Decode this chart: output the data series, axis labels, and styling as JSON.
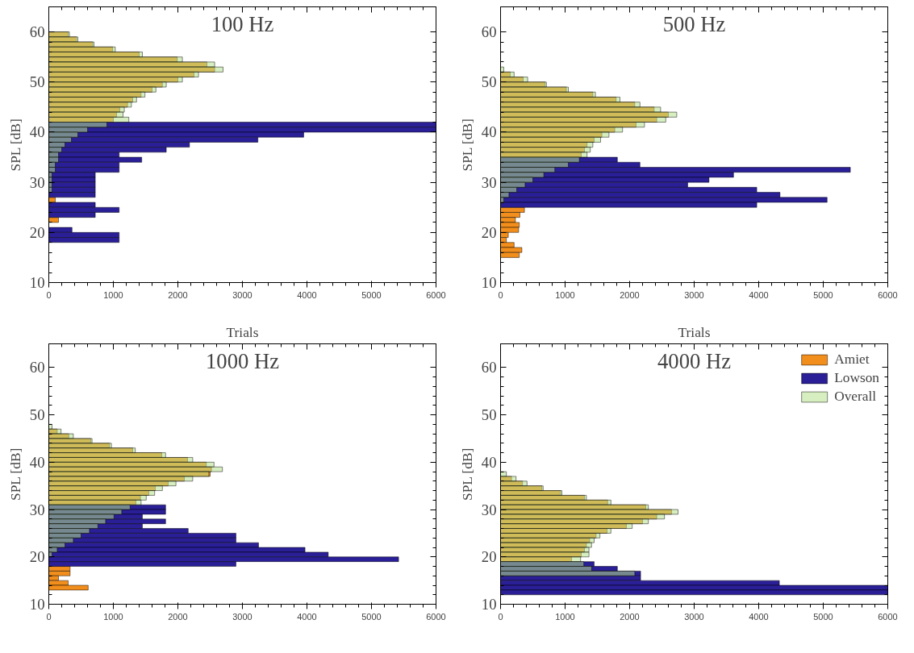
{
  "chart_data": [
    {
      "type": "histogram",
      "orientation": "horizontal",
      "title": "100 Hz",
      "ylabel": "SPL [dB]",
      "xlim": [
        0,
        6000
      ],
      "ylim": [
        10,
        65
      ],
      "xticks": [
        0,
        1000,
        2000,
        3000,
        4000,
        5000,
        6000
      ],
      "yticks": [
        10,
        20,
        30,
        40,
        50,
        60
      ],
      "grid": false,
      "legend": false,
      "bins": [
        60,
        59,
        58,
        57,
        56,
        55,
        54,
        53,
        52,
        51,
        50,
        49,
        48,
        47,
        46,
        45,
        44,
        43,
        42,
        41,
        40,
        39,
        38,
        37,
        36,
        35,
        34,
        33,
        32,
        31,
        30,
        29,
        28,
        27,
        26,
        25,
        24,
        23,
        22,
        21,
        20,
        19,
        18
      ],
      "series": [
        {
          "color": "#f28e1c",
          "values": [
            300,
            430,
            680,
            990,
            1400,
            1990,
            2450,
            2570,
            2250,
            2000,
            1760,
            1600,
            1430,
            1300,
            1220,
            1100,
            1050,
            1000,
            null,
            null,
            null,
            null,
            null,
            null,
            null,
            null,
            null,
            null,
            null,
            null,
            null,
            null,
            null,
            100,
            null,
            null,
            null,
            150,
            null,
            null,
            null,
            null
          ]
        },
        {
          "color": "#2a1f96",
          "values": [
            null,
            null,
            null,
            null,
            null,
            null,
            null,
            null,
            null,
            null,
            null,
            null,
            null,
            null,
            null,
            null,
            null,
            null,
            6000,
            6000,
            3950,
            3240,
            2180,
            1820,
            1090,
            1440,
            1090,
            1090,
            720,
            720,
            720,
            720,
            720,
            null,
            720,
            1090,
            720,
            null,
            null,
            360,
            1090,
            1090
          ]
        },
        {
          "color": "#b5e08c",
          "values": [
            320,
            450,
            700,
            1030,
            1450,
            2070,
            2570,
            2700,
            2320,
            2070,
            1820,
            1660,
            1490,
            1360,
            1280,
            1170,
            1150,
            1240,
            900,
            600,
            450,
            350,
            250,
            200,
            150,
            150,
            100,
            100,
            50,
            50,
            50,
            50,
            null,
            null,
            null,
            null,
            null,
            null,
            null,
            null,
            null,
            null
          ]
        }
      ]
    },
    {
      "type": "histogram",
      "orientation": "horizontal",
      "title": "500 Hz",
      "ylabel": "SPL [dB]",
      "xlim": [
        0,
        6000
      ],
      "ylim": [
        10,
        65
      ],
      "xticks": [
        0,
        1000,
        2000,
        3000,
        4000,
        5000,
        6000
      ],
      "yticks": [
        10,
        20,
        30,
        40,
        50,
        60
      ],
      "grid": false,
      "legend": false,
      "bins": [
        53,
        52,
        51,
        50,
        49,
        48,
        47,
        46,
        45,
        44,
        43,
        42,
        41,
        40,
        39,
        38,
        37,
        36,
        35,
        34,
        33,
        32,
        31,
        30,
        29,
        28,
        27,
        26,
        25,
        24,
        23,
        22,
        21,
        20,
        19,
        18,
        17,
        16,
        15
      ],
      "series": [
        {
          "color": "#f28e1c",
          "values": [
            null,
            150,
            350,
            690,
            1020,
            1430,
            1790,
            2080,
            2380,
            2600,
            2420,
            2100,
            1770,
            1570,
            1450,
            1340,
            1300,
            1250,
            null,
            null,
            null,
            null,
            null,
            null,
            null,
            null,
            null,
            null,
            370,
            300,
            230,
            290,
            280,
            120,
            90,
            210,
            330,
            290
          ]
        },
        {
          "color": "#2a1f96",
          "values": [
            null,
            null,
            null,
            null,
            null,
            null,
            null,
            null,
            null,
            null,
            null,
            null,
            null,
            null,
            null,
            null,
            null,
            null,
            1810,
            2160,
            5420,
            3610,
            3230,
            2900,
            3970,
            4330,
            5060,
            3970,
            null,
            null,
            null,
            null,
            null,
            null,
            null,
            null,
            null,
            null
          ]
        },
        {
          "color": "#b5e08c",
          "values": [
            50,
            210,
            420,
            710,
            1050,
            1470,
            1850,
            2160,
            2480,
            2730,
            2560,
            2230,
            1890,
            1680,
            1550,
            1430,
            1390,
            1340,
            1220,
            1050,
            840,
            670,
            500,
            380,
            250,
            130,
            50,
            null,
            null,
            null,
            null,
            null,
            null,
            null,
            null,
            null,
            null,
            null
          ]
        }
      ]
    },
    {
      "type": "histogram",
      "orientation": "horizontal",
      "title": "1000 Hz",
      "xlabel": "Trials",
      "ylabel": "SPL [dB]",
      "xlim": [
        0,
        6000
      ],
      "ylim": [
        10,
        65
      ],
      "xticks": [
        0,
        1000,
        2000,
        3000,
        4000,
        5000,
        6000
      ],
      "yticks": [
        10,
        20,
        30,
        40,
        50,
        60
      ],
      "grid": false,
      "legend": false,
      "bins": [
        48,
        47,
        46,
        45,
        44,
        43,
        42,
        41,
        40,
        39,
        38,
        37,
        36,
        35,
        34,
        33,
        32,
        31,
        30,
        29,
        28,
        27,
        26,
        25,
        24,
        23,
        22,
        21,
        20,
        19,
        18,
        17,
        16,
        15,
        14,
        13
      ],
      "series": [
        {
          "color": "#f28e1c",
          "values": [
            null,
            130,
            310,
            650,
            940,
            1300,
            1750,
            2150,
            2440,
            2520,
            2500,
            2100,
            1850,
            1650,
            1550,
            1420,
            1350,
            null,
            null,
            null,
            null,
            null,
            null,
            null,
            null,
            null,
            null,
            null,
            null,
            null,
            330,
            330,
            150,
            300,
            610
          ]
        },
        {
          "color": "#2a1f96",
          "values": [
            null,
            null,
            null,
            null,
            null,
            null,
            null,
            null,
            null,
            null,
            null,
            null,
            null,
            null,
            null,
            null,
            null,
            1810,
            1810,
            1450,
            1810,
            1450,
            2160,
            2900,
            2900,
            3250,
            3970,
            4330,
            5420,
            2900,
            null,
            null,
            null,
            null,
            null
          ]
        },
        {
          "color": "#b5e08c",
          "values": [
            50,
            190,
            380,
            670,
            970,
            1340,
            1810,
            2230,
            2560,
            2690,
            2480,
            2230,
            1970,
            1760,
            1640,
            1510,
            1430,
            1260,
            1130,
            1010,
            880,
            760,
            630,
            500,
            380,
            250,
            130,
            50,
            null,
            null,
            null,
            null,
            null,
            null,
            null
          ]
        }
      ]
    },
    {
      "type": "histogram",
      "orientation": "horizontal",
      "title": "4000 Hz",
      "xlabel": "Trials",
      "ylabel": "SPL [dB]",
      "xlim": [
        0,
        6000
      ],
      "ylim": [
        10,
        65
      ],
      "xticks": [
        0,
        1000,
        2000,
        3000,
        4000,
        5000,
        6000
      ],
      "yticks": [
        10,
        20,
        30,
        40,
        50,
        60
      ],
      "grid": false,
      "legend": "top right",
      "bins": [
        38,
        37,
        36,
        35,
        34,
        33,
        32,
        31,
        30,
        29,
        28,
        27,
        26,
        25,
        24,
        23,
        22,
        21,
        20,
        19,
        18,
        17,
        16,
        15,
        14,
        13,
        12
      ],
      "series": [
        {
          "name": "Amiet",
          "color": "#f28e1c",
          "values": [
            null,
            170,
            340,
            640,
            930,
            1300,
            1660,
            2250,
            2650,
            2420,
            2200,
            1950,
            1650,
            1480,
            1380,
            1330,
            1300,
            1250,
            1100,
            null,
            null,
            null,
            null,
            null,
            null,
            null
          ]
        },
        {
          "name": "Lowson",
          "color": "#2a1f96",
          "values": [
            null,
            null,
            null,
            null,
            null,
            null,
            null,
            null,
            null,
            null,
            null,
            null,
            null,
            null,
            null,
            null,
            null,
            null,
            null,
            1450,
            1810,
            2170,
            2170,
            4320,
            6000,
            6000
          ]
        },
        {
          "name": "Overall",
          "color": "#b5e08c",
          "values": [
            90,
            240,
            410,
            660,
            950,
            1330,
            1710,
            2290,
            2750,
            2540,
            2290,
            2040,
            1710,
            1540,
            1450,
            1410,
            1370,
            1370,
            1240,
            1290,
            1410,
            2080,
            null,
            null,
            null,
            null
          ]
        }
      ]
    }
  ]
}
